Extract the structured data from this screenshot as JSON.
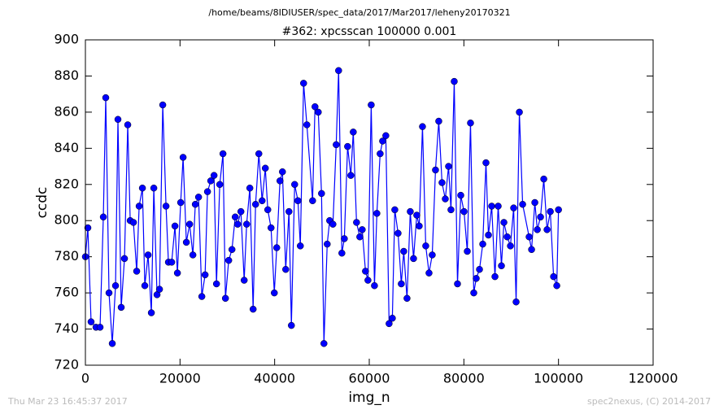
{
  "chart_data": {
    "type": "line",
    "suptitle": "/home/beams/8IDIUSER/spec_data/2017/Mar2017/leheny20170321",
    "title": "#362: xpcsscan 100000 0.001",
    "x_label": "img_n",
    "y_label": "ccdc",
    "footer_left": "Thu Mar 23 16:45:37 2017",
    "footer_right": "spec2nexus, (C) 2014-2017",
    "xlim": [
      0,
      120000
    ],
    "xticks": [
      0,
      20000,
      40000,
      60000,
      80000,
      100000,
      120000
    ],
    "ylim": [
      720,
      900
    ],
    "yticks": [
      720,
      740,
      760,
      780,
      800,
      820,
      840,
      860,
      880,
      900
    ],
    "x": [
      0,
      520,
      1200,
      2240,
      3100,
      3790,
      4300,
      4990,
      5680,
      6370,
      6880,
      7570,
      8260,
      8950,
      9470,
      10150,
      10840,
      11360,
      12050,
      12560,
      13250,
      13940,
      14460,
      15140,
      15660,
      16350,
      17040,
      17550,
      18240,
      18930,
      19450,
      20140,
      20650,
      21340,
      22030,
      22720,
      23230,
      23920,
      24610,
      25300,
      25810,
      26500,
      27190,
      27710,
      28400,
      29080,
      29600,
      30290,
      30980,
      31670,
      32180,
      32870,
      33560,
      34080,
      34760,
      35450,
      35970,
      36660,
      37350,
      38030,
      38550,
      39240,
      39930,
      40440,
      41130,
      41650,
      42340,
      43030,
      43540,
      44230,
      44920,
      45430,
      46120,
      46810,
      48020,
      48530,
      49220,
      49910,
      50420,
      51110,
      51630,
      52320,
      53010,
      53520,
      54210,
      54730,
      55420,
      56100,
      56620,
      57310,
      58000,
      58510,
      59200,
      59720,
      60410,
      61100,
      61610,
      62300,
      62820,
      63500,
      64190,
      64880,
      65400,
      66090,
      66770,
      67290,
      67980,
      68670,
      69360,
      70040,
      70560,
      71250,
      71940,
      72630,
      73310,
      74000,
      74690,
      75380,
      76070,
      76760,
      77270,
      77960,
      78650,
      79340,
      80030,
      80720,
      81400,
      82090,
      82610,
      83300,
      83990,
      84670,
      85190,
      85880,
      86570,
      87250,
      87940,
      88460,
      89150,
      89840,
      90520,
      91040,
      91730,
      92420,
      93790,
      94310,
      95000,
      95520,
      96200,
      96890,
      97580,
      98270,
      98960,
      99640,
      100000
    ],
    "series": [
      {
        "name": "ccdc",
        "color": "#0000ff",
        "values": [
          780,
          796,
          744,
          741,
          741,
          802,
          868,
          760,
          732,
          764,
          856,
          752,
          779,
          853,
          800,
          799,
          772,
          808,
          818,
          764,
          781,
          749,
          818,
          759,
          762,
          864,
          808,
          777,
          777,
          797,
          771,
          810,
          835,
          788,
          798,
          781,
          809,
          813,
          758,
          770,
          816,
          822,
          825,
          765,
          820,
          837,
          757,
          778,
          784,
          802,
          798,
          805,
          767,
          798,
          818,
          751,
          809,
          837,
          811,
          829,
          806,
          796,
          760,
          785,
          822,
          827,
          773,
          805,
          742,
          820,
          811,
          786,
          876,
          853,
          811,
          863,
          860,
          815,
          732,
          787,
          800,
          798,
          842,
          883,
          782,
          790,
          841,
          825,
          849,
          799,
          791,
          795,
          772,
          767,
          864,
          764,
          804,
          837,
          844,
          847,
          743,
          746,
          806,
          793,
          765,
          783,
          757,
          805,
          779,
          803,
          797,
          852,
          786,
          771,
          781,
          828,
          855,
          821,
          812,
          830,
          806,
          877,
          765,
          814,
          805,
          783,
          854,
          760,
          768,
          773,
          787,
          832,
          792,
          808,
          769,
          808,
          775,
          799,
          791,
          786,
          807,
          755,
          860,
          809,
          791,
          784,
          810,
          795,
          802,
          823,
          795,
          805,
          769,
          764,
          806
        ]
      }
    ]
  }
}
